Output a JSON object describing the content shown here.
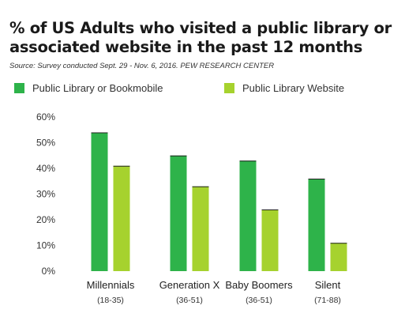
{
  "chart_data": {
    "type": "bar",
    "title": "% of US Adults who visited a public library or associated website in the past 12 months",
    "source": "Source: Survey conducted Sept. 29 - Nov. 6, 2016. PEW RESEARCH CENTER",
    "categories": [
      "Millennials",
      "Generation X",
      "Baby Boomers",
      "Silent"
    ],
    "category_subtitles": [
      "(18-35)",
      "(36-51)",
      "(36-51)",
      "(71-88)"
    ],
    "series": [
      {
        "name": "Public Library or Bookmobile",
        "values": [
          54,
          45,
          43,
          36
        ],
        "color": "#2eb34a"
      },
      {
        "name": "Public Library Website",
        "values": [
          41,
          33,
          24,
          11
        ],
        "color": "#a6d22e"
      }
    ],
    "ylim": [
      0,
      60
    ],
    "yticks": [
      "0%",
      "10%",
      "20%",
      "30%",
      "40%",
      "50%",
      "60%"
    ],
    "legend_position": "top-left",
    "grid": false
  }
}
